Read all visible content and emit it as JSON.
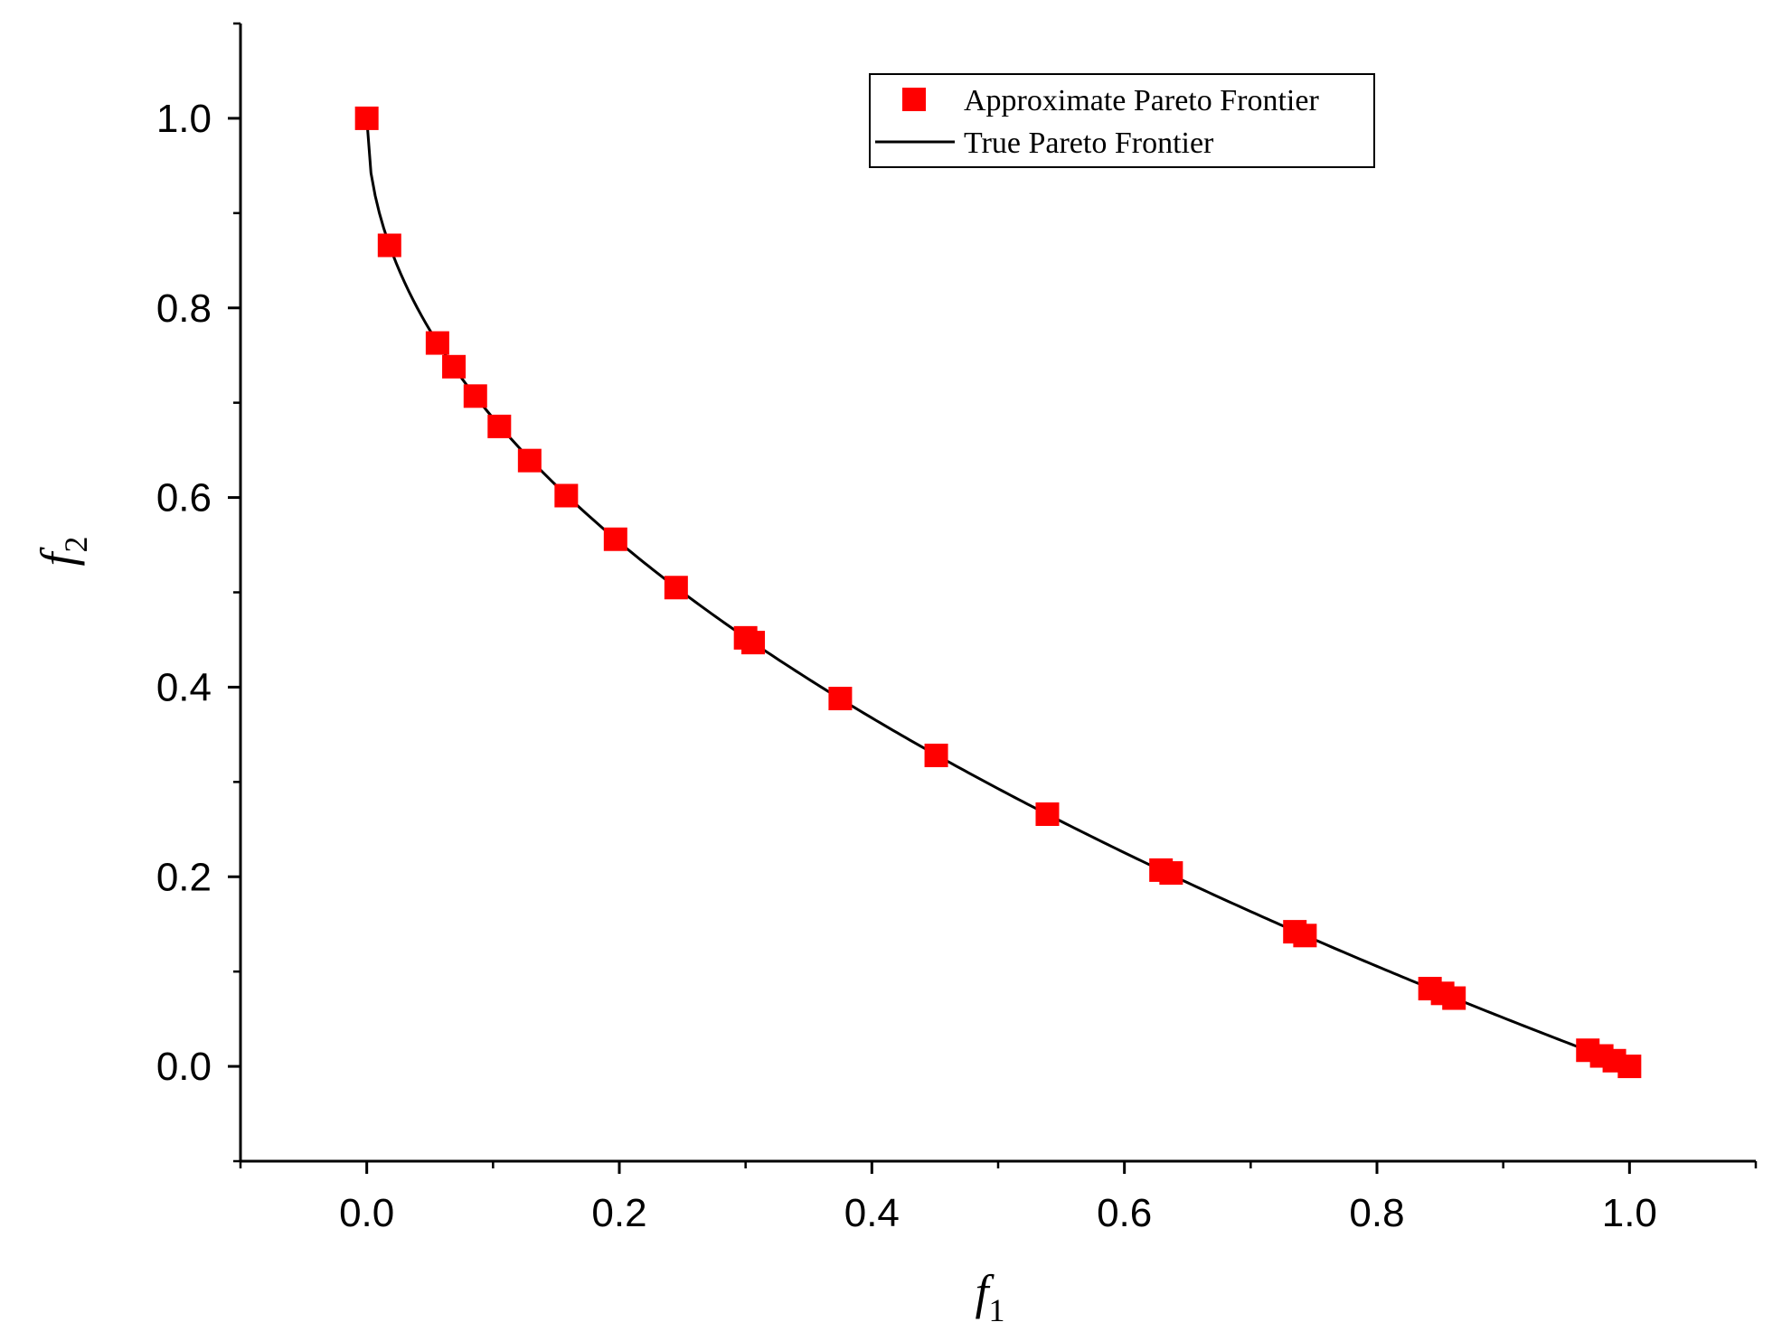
{
  "chart_data": {
    "type": "scatter",
    "xlabel": {
      "base": "f",
      "sub": "1"
    },
    "ylabel": {
      "base": "f",
      "sub": "2"
    },
    "xlim": [
      -0.1,
      1.1
    ],
    "ylim": [
      -0.1,
      1.1
    ],
    "x_ticks": [
      "0.0",
      "0.2",
      "0.4",
      "0.6",
      "0.8",
      "1.0"
    ],
    "y_ticks": [
      "0.0",
      "0.2",
      "0.4",
      "0.6",
      "0.8",
      "1.0"
    ],
    "grid": false,
    "legend": {
      "position": "top-right",
      "entries": [
        "Approximate Pareto Frontier",
        "True Pareto Frontier"
      ]
    },
    "colors": {
      "approx": "#ff0000",
      "true": "#000000"
    },
    "series": [
      {
        "name": "Approximate Pareto Frontier",
        "marker": "square",
        "points": [
          [
            0.0,
            1.0
          ],
          [
            0.018,
            0.866
          ],
          [
            0.056,
            0.763
          ],
          [
            0.069,
            0.738
          ],
          [
            0.086,
            0.707
          ],
          [
            0.105,
            0.675
          ],
          [
            0.129,
            0.639
          ],
          [
            0.158,
            0.602
          ],
          [
            0.197,
            0.556
          ],
          [
            0.245,
            0.505
          ],
          [
            0.3,
            0.452
          ],
          [
            0.306,
            0.447
          ],
          [
            0.375,
            0.388
          ],
          [
            0.451,
            0.328
          ],
          [
            0.539,
            0.266
          ],
          [
            0.629,
            0.207
          ],
          [
            0.637,
            0.204
          ],
          [
            0.735,
            0.142
          ],
          [
            0.743,
            0.138
          ],
          [
            0.842,
            0.082
          ],
          [
            0.852,
            0.077
          ],
          [
            0.861,
            0.072
          ],
          [
            0.967,
            0.017
          ],
          [
            0.978,
            0.011
          ],
          [
            0.988,
            0.006
          ],
          [
            1.0,
            0.0
          ]
        ]
      },
      {
        "name": "True Pareto Frontier",
        "line": true,
        "function": "1 - sqrt(f1)"
      }
    ]
  }
}
